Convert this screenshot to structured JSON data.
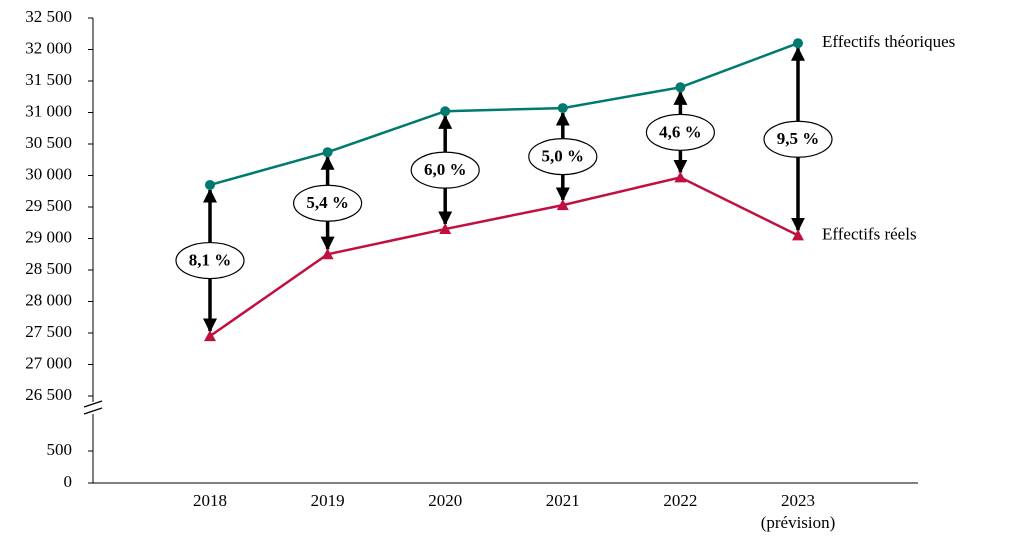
{
  "chart_data": {
    "type": "line",
    "categories": [
      "2018",
      "2019",
      "2020",
      "2021",
      "2022",
      "2023"
    ],
    "x_note": "(prévision)",
    "series": [
      {
        "name": "Effectifs théoriques",
        "color": "#007a6e",
        "marker": "circle",
        "values": [
          29850,
          30370,
          31020,
          31070,
          31400,
          32100
        ]
      },
      {
        "name": "Effectifs réels",
        "color": "#c0103f",
        "marker": "triangle",
        "values": [
          27450,
          28750,
          29150,
          29530,
          29970,
          29050
        ]
      }
    ],
    "gap": {
      "values": [
        8.1,
        5.4,
        6.0,
        5.0,
        4.6,
        9.5
      ],
      "value_labels": [
        "8,1 %",
        "5,4 %",
        "6,0 %",
        "5,0 %",
        "4,6 %",
        "9,5 %"
      ]
    },
    "ylim": [
      0,
      32500
    ],
    "axis_break": [
      500,
      26500
    ],
    "yticks": [
      0,
      500,
      {
        "value": 26500,
        "label": "26 500"
      },
      {
        "value": 27000,
        "label": "27 000"
      },
      {
        "value": 27500,
        "label": "27 500"
      },
      {
        "value": 28000,
        "label": "28 000"
      },
      {
        "value": 28500,
        "label": "28 500"
      },
      {
        "value": 29000,
        "label": "29 000"
      },
      {
        "value": 29500,
        "label": "29 500"
      },
      {
        "value": 30000,
        "label": "30 000"
      },
      {
        "value": 30500,
        "label": "30 500"
      },
      {
        "value": 31000,
        "label": "31 000"
      },
      {
        "value": 31500,
        "label": "31 500"
      },
      {
        "value": 32000,
        "label": "32 000"
      },
      {
        "value": 32500,
        "label": "32 500"
      }
    ],
    "grid": false
  }
}
